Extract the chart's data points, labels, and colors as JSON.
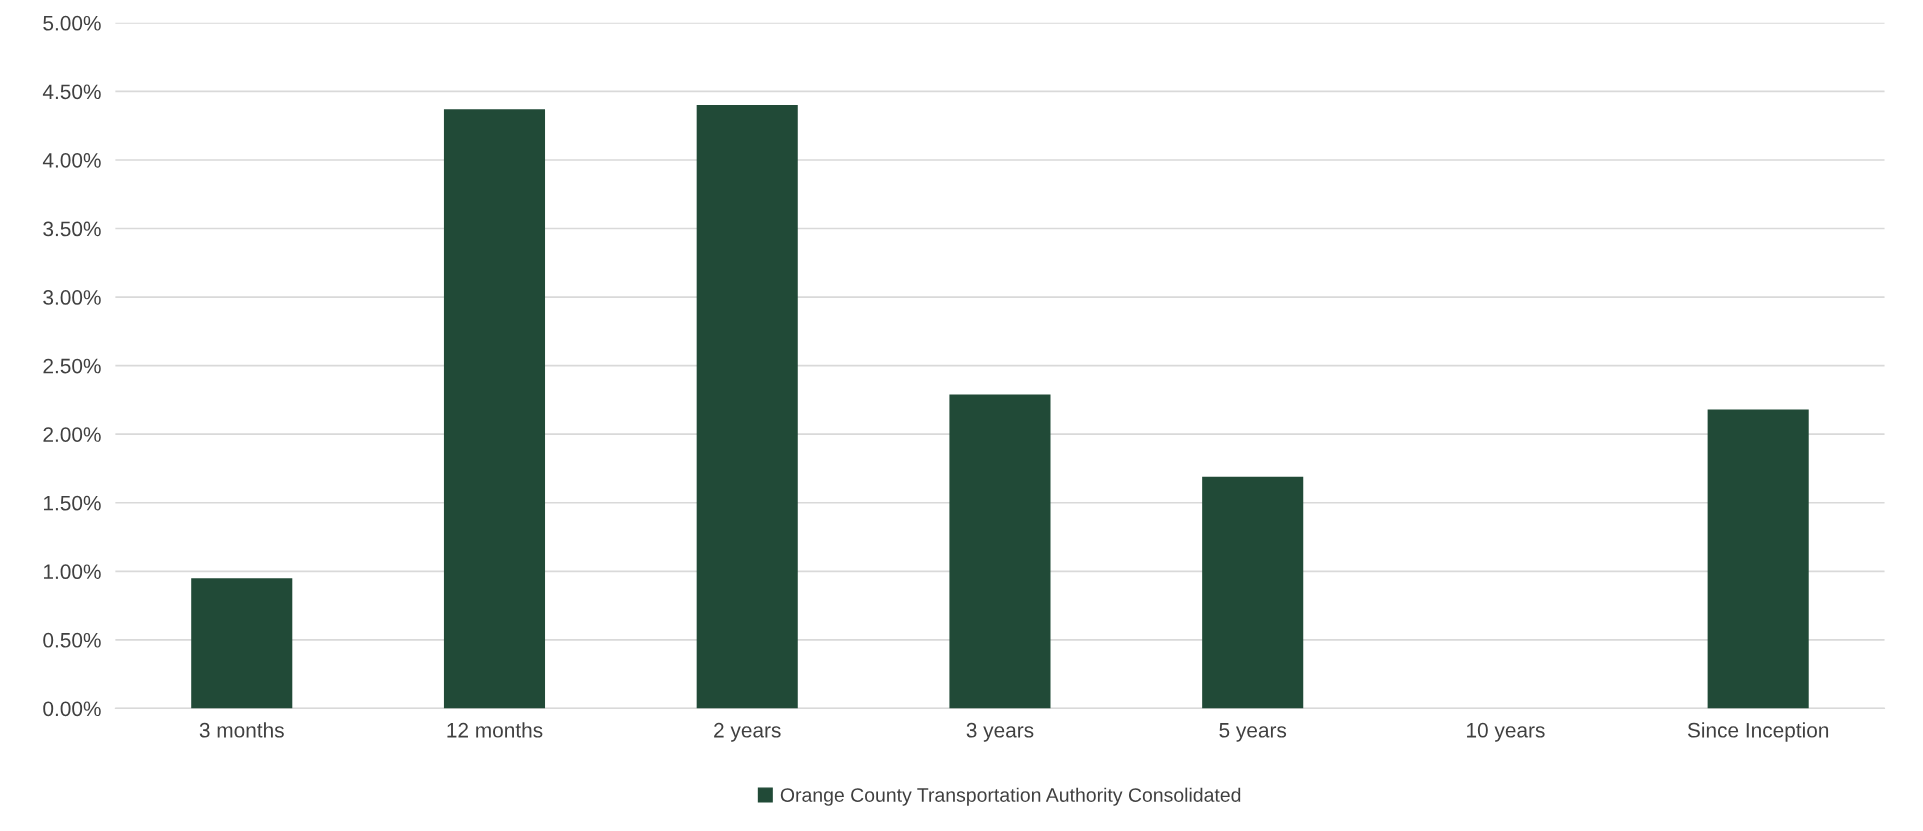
{
  "chart_data": {
    "type": "bar",
    "categories": [
      "3 months",
      "12 months",
      "2 years",
      "3 years",
      "5 years",
      "10 years",
      "Since Inception"
    ],
    "series": [
      {
        "name": "Orange County Transportation Authority Consolidated",
        "color": "#214a37",
        "values": [
          0.95,
          4.37,
          4.4,
          2.29,
          1.69,
          null,
          2.18
        ]
      }
    ],
    "ylim": [
      0,
      5
    ],
    "yticks": [
      {
        "value": 0,
        "label": "0.00%"
      },
      {
        "value": 0.5,
        "label": "0.50%"
      },
      {
        "value": 1,
        "label": "1.00%"
      },
      {
        "value": 1.5,
        "label": "1.50%"
      },
      {
        "value": 2,
        "label": "2.00%"
      },
      {
        "value": 2.5,
        "label": "2.50%"
      },
      {
        "value": 3,
        "label": "3.00%"
      },
      {
        "value": 3.5,
        "label": "3.50%"
      },
      {
        "value": 4,
        "label": "4.00%"
      },
      {
        "value": 4.5,
        "label": "4.50%"
      },
      {
        "value": 5,
        "label": "5.00%"
      }
    ],
    "grid": "y",
    "legend": "bottom"
  }
}
